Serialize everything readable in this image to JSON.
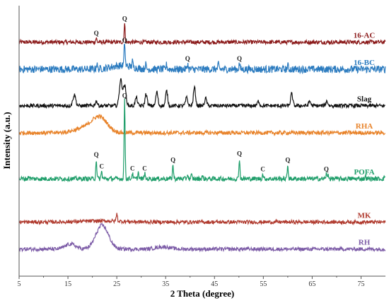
{
  "chart_data": {
    "type": "line",
    "title": "",
    "xlabel": "2 Theta (degree)",
    "ylabel": "Intensity (a.u.)",
    "xlim": [
      5,
      80
    ],
    "x_ticks": [
      "5",
      "15",
      "25",
      "35",
      "45",
      "55",
      "65",
      "75"
    ],
    "grid": false,
    "legend": "labels at right end of each trace",
    "series": [
      {
        "name": "16-AC",
        "color": "#8b1a1a",
        "baseline": 0.135,
        "noise": 0.22,
        "peaks": [
          {
            "x": 20.8,
            "h": 0.45,
            "w": 0.15,
            "label": "Q"
          },
          {
            "x": 26.6,
            "h": 2.0,
            "w": 0.15,
            "label": "Q"
          }
        ],
        "humps": []
      },
      {
        "name": "16-BC",
        "color": "#2b7bbf",
        "baseline": 0.235,
        "noise": 0.4,
        "peaks": [
          {
            "x": 20.9,
            "h": 0.6,
            "w": 0.15
          },
          {
            "x": 26.6,
            "h": 2.6,
            "w": 0.15,
            "label": "Q"
          },
          {
            "x": 28.2,
            "h": 0.6,
            "w": 0.15
          },
          {
            "x": 30.9,
            "h": 0.5,
            "w": 0.15
          },
          {
            "x": 35.2,
            "h": 0.5,
            "w": 0.15
          },
          {
            "x": 39.5,
            "h": 0.6,
            "w": 0.15,
            "label": "Q"
          },
          {
            "x": 45.8,
            "h": 0.5,
            "w": 0.15
          },
          {
            "x": 50.1,
            "h": 0.6,
            "w": 0.15,
            "label": "Q"
          },
          {
            "x": 60.0,
            "h": 0.4,
            "w": 0.15
          }
        ],
        "humps": [
          {
            "x": 26.0,
            "h": 0.4,
            "w": 3.0
          }
        ]
      },
      {
        "name": "Slag",
        "color": "#111111",
        "baseline": 0.37,
        "noise": 0.2,
        "peaks": [
          {
            "x": 16.3,
            "h": 1.2,
            "w": 0.4
          },
          {
            "x": 20.8,
            "h": 0.5,
            "w": 0.3
          },
          {
            "x": 25.8,
            "h": 2.8,
            "w": 0.4
          },
          {
            "x": 26.6,
            "h": 2.2,
            "w": 0.4
          },
          {
            "x": 29.0,
            "h": 0.9,
            "w": 0.3
          },
          {
            "x": 31.0,
            "h": 1.3,
            "w": 0.3
          },
          {
            "x": 33.2,
            "h": 1.5,
            "w": 0.3
          },
          {
            "x": 35.2,
            "h": 1.6,
            "w": 0.3
          },
          {
            "x": 39.3,
            "h": 0.9,
            "w": 0.3
          },
          {
            "x": 40.9,
            "h": 2.0,
            "w": 0.3
          },
          {
            "x": 43.2,
            "h": 0.8,
            "w": 0.3
          },
          {
            "x": 54.0,
            "h": 0.5,
            "w": 0.3
          },
          {
            "x": 60.8,
            "h": 1.3,
            "w": 0.3
          },
          {
            "x": 64.5,
            "h": 0.5,
            "w": 0.3
          },
          {
            "x": 68.0,
            "h": 0.5,
            "w": 0.3
          }
        ],
        "humps": []
      },
      {
        "name": "RHA",
        "color": "#e8832a",
        "baseline": 0.47,
        "noise": 0.22,
        "peaks": [],
        "humps": [
          {
            "x": 21.5,
            "h": 1.6,
            "w": 2.2
          },
          {
            "x": 18.5,
            "h": 0.5,
            "w": 3.0
          }
        ]
      },
      {
        "name": "POFA",
        "color": "#1f9e6a",
        "baseline": 0.64,
        "noise": 0.25,
        "peaks": [
          {
            "x": 20.8,
            "h": 2.1,
            "w": 0.15,
            "label": "Q"
          },
          {
            "x": 21.9,
            "h": 0.8,
            "w": 0.15,
            "label": "C"
          },
          {
            "x": 26.6,
            "h": 8.5,
            "w": 0.15,
            "label": "Q"
          },
          {
            "x": 28.2,
            "h": 0.6,
            "w": 0.15,
            "label": "C"
          },
          {
            "x": 29.4,
            "h": 0.7,
            "w": 0.15
          },
          {
            "x": 30.7,
            "h": 0.6,
            "w": 0.15,
            "label": "C"
          },
          {
            "x": 36.5,
            "h": 1.5,
            "w": 0.15,
            "label": "Q"
          },
          {
            "x": 39.5,
            "h": 0.5,
            "w": 0.15
          },
          {
            "x": 40.3,
            "h": 0.4,
            "w": 0.15
          },
          {
            "x": 42.5,
            "h": 0.3,
            "w": 0.15
          },
          {
            "x": 50.1,
            "h": 2.2,
            "w": 0.15,
            "label": "Q"
          },
          {
            "x": 54.9,
            "h": 0.5,
            "w": 0.15,
            "label": "C"
          },
          {
            "x": 60.0,
            "h": 1.5,
            "w": 0.15,
            "label": "Q"
          },
          {
            "x": 67.9,
            "h": 0.5,
            "w": 0.15,
            "label": "Q"
          },
          {
            "x": 68.3,
            "h": 0.5,
            "w": 0.15
          },
          {
            "x": 7.0,
            "h": 0.3,
            "w": 0.15
          },
          {
            "x": 75.9,
            "h": 0.3,
            "w": 0.15
          },
          {
            "x": 79.9,
            "h": 0.35,
            "w": 0.15
          }
        ],
        "humps": []
      },
      {
        "name": "MK",
        "color": "#b03a2e",
        "baseline": 0.8,
        "noise": 0.2,
        "peaks": [
          {
            "x": 25.0,
            "h": 0.8,
            "w": 0.18
          }
        ],
        "humps": [
          {
            "x": 22.0,
            "h": 0.12,
            "w": 6.0
          }
        ]
      },
      {
        "name": "RH",
        "color": "#7b5aa6",
        "baseline": 0.9,
        "noise": 0.2,
        "peaks": [],
        "humps": [
          {
            "x": 22.0,
            "h": 2.6,
            "w": 1.8
          },
          {
            "x": 15.5,
            "h": 0.55,
            "w": 1.5
          },
          {
            "x": 34.5,
            "h": 0.25,
            "w": 2.0
          }
        ]
      }
    ]
  }
}
